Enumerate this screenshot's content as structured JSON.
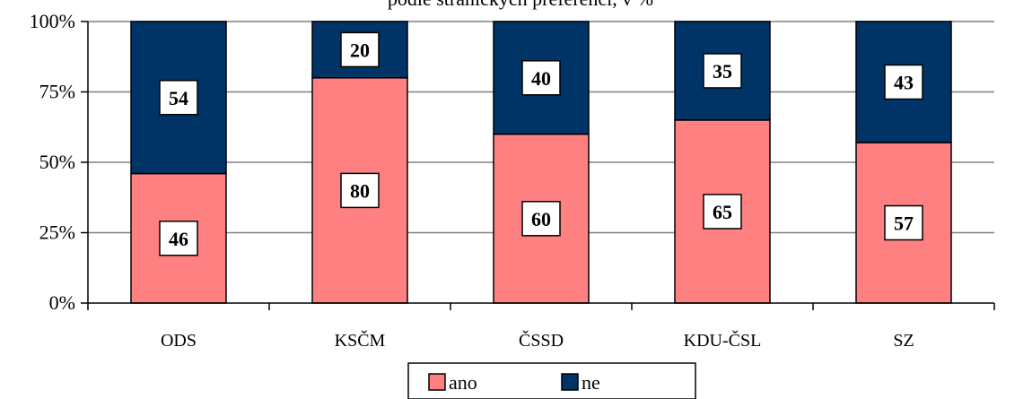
{
  "colors": {
    "ano": "#ff8080",
    "ne": "#003366",
    "gridline": "#808080",
    "label_box": "#ffffff"
  },
  "chart_data": {
    "type": "bar",
    "stacked": true,
    "title": "podle stranických preferencí, v %",
    "categories": [
      "ODS",
      "KSČM",
      "ČSSD",
      "KDU-ČSL",
      "SZ"
    ],
    "series": [
      {
        "name": "ano",
        "values": [
          46,
          80,
          60,
          65,
          57
        ]
      },
      {
        "name": "ne",
        "values": [
          54,
          20,
          40,
          35,
          43
        ]
      }
    ],
    "y_ticks": [
      "0%",
      "25%",
      "50%",
      "75%",
      "100%"
    ],
    "ylim": [
      0,
      100
    ],
    "xlabel": "",
    "ylabel": "",
    "grid": true,
    "legend_position": "bottom"
  }
}
